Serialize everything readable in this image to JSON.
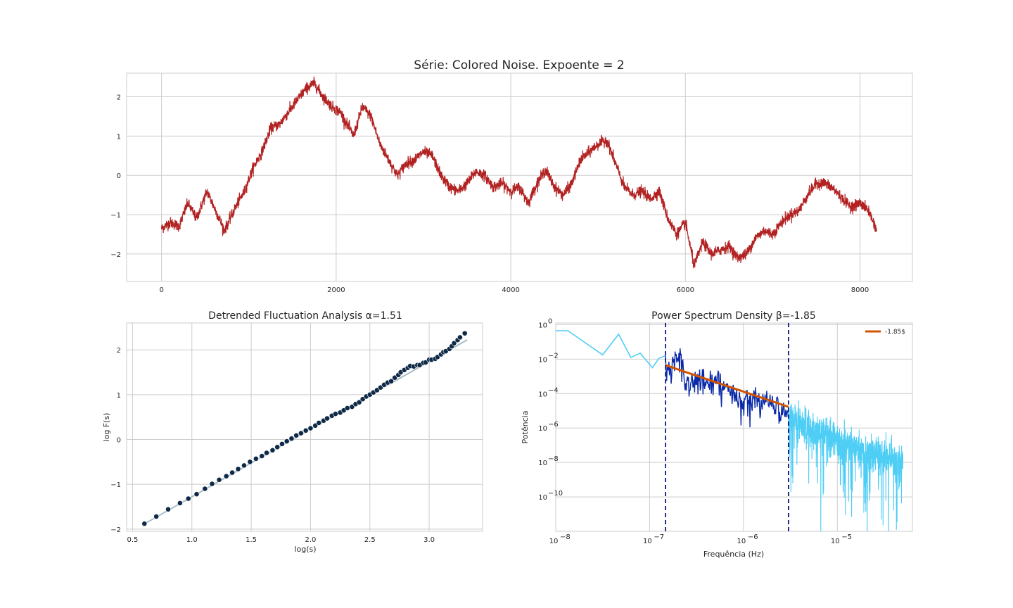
{
  "chart_data": [
    {
      "id": "series",
      "type": "line",
      "title": "Série: Colored Noise. Expoente = 2",
      "xlabel": "",
      "ylabel": "",
      "xlim": [
        -400,
        8600
      ],
      "ylim": [
        -2.7,
        2.6
      ],
      "xticks": [
        0,
        2000,
        4000,
        6000,
        8000
      ],
      "yticks": [
        -2,
        -1,
        0,
        1,
        2
      ],
      "color": "#b22222",
      "grid": true,
      "n_points": 8192,
      "anchors": [
        [
          0,
          -1.35
        ],
        [
          100,
          -1.2
        ],
        [
          200,
          -1.3
        ],
        [
          300,
          -0.7
        ],
        [
          400,
          -1.1
        ],
        [
          520,
          -0.4
        ],
        [
          620,
          -0.9
        ],
        [
          720,
          -1.4
        ],
        [
          850,
          -0.8
        ],
        [
          950,
          -0.4
        ],
        [
          1050,
          0.2
        ],
        [
          1150,
          0.6
        ],
        [
          1250,
          1.2
        ],
        [
          1350,
          1.3
        ],
        [
          1450,
          1.6
        ],
        [
          1550,
          1.9
        ],
        [
          1650,
          2.2
        ],
        [
          1750,
          2.35
        ],
        [
          1850,
          2.0
        ],
        [
          1950,
          1.75
        ],
        [
          2050,
          1.6
        ],
        [
          2200,
          1.0
        ],
        [
          2300,
          1.75
        ],
        [
          2400,
          1.5
        ],
        [
          2500,
          0.8
        ],
        [
          2600,
          0.4
        ],
        [
          2700,
          0.0
        ],
        [
          2800,
          0.3
        ],
        [
          2900,
          0.4
        ],
        [
          3000,
          0.6
        ],
        [
          3100,
          0.5
        ],
        [
          3200,
          0.0
        ],
        [
          3300,
          -0.3
        ],
        [
          3400,
          -0.4
        ],
        [
          3500,
          -0.2
        ],
        [
          3600,
          0.1
        ],
        [
          3700,
          0.0
        ],
        [
          3800,
          -0.3
        ],
        [
          3900,
          -0.2
        ],
        [
          4000,
          -0.4
        ],
        [
          4100,
          -0.3
        ],
        [
          4200,
          -0.7
        ],
        [
          4300,
          -0.2
        ],
        [
          4400,
          0.15
        ],
        [
          4500,
          -0.3
        ],
        [
          4600,
          -0.5
        ],
        [
          4700,
          -0.2
        ],
        [
          4800,
          0.4
        ],
        [
          4900,
          0.6
        ],
        [
          5000,
          0.8
        ],
        [
          5100,
          0.9
        ],
        [
          5200,
          0.3
        ],
        [
          5300,
          -0.3
        ],
        [
          5400,
          -0.5
        ],
        [
          5500,
          -0.4
        ],
        [
          5600,
          -0.6
        ],
        [
          5700,
          -0.4
        ],
        [
          5800,
          -1.1
        ],
        [
          5900,
          -1.5
        ],
        [
          6000,
          -1.2
        ],
        [
          6100,
          -2.3
        ],
        [
          6200,
          -1.7
        ],
        [
          6300,
          -2.0
        ],
        [
          6400,
          -1.9
        ],
        [
          6500,
          -1.8
        ],
        [
          6600,
          -2.1
        ],
        [
          6700,
          -2.0
        ],
        [
          6800,
          -1.6
        ],
        [
          6900,
          -1.4
        ],
        [
          7000,
          -1.5
        ],
        [
          7100,
          -1.2
        ],
        [
          7200,
          -1.0
        ],
        [
          7300,
          -0.9
        ],
        [
          7400,
          -0.5
        ],
        [
          7500,
          -0.2
        ],
        [
          7600,
          -0.2
        ],
        [
          7700,
          -0.35
        ],
        [
          7800,
          -0.6
        ],
        [
          7900,
          -0.8
        ],
        [
          8000,
          -0.7
        ],
        [
          8100,
          -0.9
        ],
        [
          8191,
          -1.4
        ]
      ]
    },
    {
      "id": "dfa",
      "type": "scatter",
      "title": "Detrended Fluctuation Analysis α=1.51",
      "xlabel": "log(s)",
      "ylabel": "log F(s)",
      "xlim": [
        0.45,
        3.45
      ],
      "ylim": [
        -2.05,
        2.6
      ],
      "xticks": [
        0.5,
        1.0,
        1.5,
        2.0,
        2.5,
        3.0
      ],
      "yticks": [
        -2,
        -1,
        0,
        1,
        2
      ],
      "grid": true,
      "point_color": "#0e2a47",
      "fit_color": "#a8bcc8",
      "fit": {
        "slope": 1.51,
        "intercept": -2.79,
        "x_range": [
          0.6,
          3.32
        ]
      },
      "x": [
        0.6,
        0.7,
        0.8,
        0.9,
        0.97,
        1.04,
        1.11,
        1.17,
        1.23,
        1.29,
        1.34,
        1.39,
        1.44,
        1.49,
        1.54,
        1.59,
        1.63,
        1.68,
        1.72,
        1.76,
        1.8,
        1.84,
        1.88,
        1.92,
        1.96,
        2.0,
        2.04,
        2.07,
        2.11,
        2.14,
        2.18,
        2.21,
        2.25,
        2.28,
        2.31,
        2.35,
        2.38,
        2.41,
        2.44,
        2.47,
        2.5,
        2.53,
        2.56,
        2.59,
        2.62,
        2.65,
        2.68,
        2.71,
        2.74,
        2.76,
        2.79,
        2.82,
        2.84,
        2.87,
        2.9,
        2.92,
        2.95,
        2.97,
        3.0,
        3.02,
        3.05,
        3.07,
        3.1,
        3.12,
        3.14,
        3.17,
        3.19,
        3.21,
        3.24,
        3.26,
        3.3
      ],
      "y": [
        -1.88,
        -1.72,
        -1.56,
        -1.42,
        -1.32,
        -1.22,
        -1.1,
        -0.99,
        -0.9,
        -0.82,
        -0.74,
        -0.66,
        -0.58,
        -0.5,
        -0.43,
        -0.37,
        -0.3,
        -0.24,
        -0.17,
        -0.1,
        -0.04,
        0.02,
        0.09,
        0.14,
        0.2,
        0.25,
        0.31,
        0.37,
        0.42,
        0.47,
        0.53,
        0.57,
        0.6,
        0.65,
        0.7,
        0.73,
        0.79,
        0.83,
        0.9,
        0.96,
        1.0,
        1.05,
        1.1,
        1.16,
        1.22,
        1.27,
        1.3,
        1.38,
        1.44,
        1.5,
        1.55,
        1.6,
        1.64,
        1.63,
        1.66,
        1.66,
        1.71,
        1.72,
        1.78,
        1.78,
        1.8,
        1.84,
        1.9,
        1.95,
        1.97,
        2.02,
        2.08,
        2.15,
        2.22,
        2.28,
        2.37
      ]
    },
    {
      "id": "psd",
      "type": "line",
      "title": "Power Spectrum Density β=-1.85",
      "xlabel": "Frequência (Hz)",
      "ylabel": "Potência",
      "xscale": "log",
      "yscale": "log",
      "xlim_log10": [
        -8,
        -4.2
      ],
      "ylim_log10": [
        -12,
        0.1
      ],
      "xticks_log10": [
        -8,
        -7,
        -6,
        -5
      ],
      "yticks_log10": [
        0,
        -2,
        -4,
        -6,
        -8,
        -10
      ],
      "grid": true,
      "colors": {
        "outside": "#4ecdf5",
        "inside": "#0a2aa8",
        "fit": "#d35400",
        "vline": "#0d1a80"
      },
      "fit_window_log10": [
        -6.83,
        -5.52
      ],
      "fit": {
        "slope": -1.85,
        "intercept_at_start": -2.35,
        "legend": "-1.85$"
      },
      "legend_position": "top-right",
      "spectrum_anchors_log10": [
        [
          -8.0,
          -0.35
        ],
        [
          -7.87,
          -0.35
        ],
        [
          -7.5,
          -1.75
        ],
        [
          -7.33,
          -0.55
        ],
        [
          -7.2,
          -1.9
        ],
        [
          -7.1,
          -1.65
        ],
        [
          -6.97,
          -2.5
        ],
        [
          -6.9,
          -1.95
        ],
        [
          -6.83,
          -1.8
        ],
        [
          -6.78,
          -2.6
        ],
        [
          -6.73,
          -1.45
        ],
        [
          -6.67,
          -1.5
        ],
        [
          -6.6,
          -3.2
        ],
        [
          -6.5,
          -2.7
        ],
        [
          -6.4,
          -3.0
        ],
        [
          -6.3,
          -2.8
        ],
        [
          -6.2,
          -3.3
        ],
        [
          -6.1,
          -3.6
        ],
        [
          -6.0,
          -4.1
        ],
        [
          -5.9,
          -3.8
        ],
        [
          -5.8,
          -4.2
        ],
        [
          -5.7,
          -4.0
        ],
        [
          -5.6,
          -4.6
        ],
        [
          -5.52,
          -4.9
        ],
        [
          -5.4,
          -5.2
        ],
        [
          -5.2,
          -5.7
        ],
        [
          -5.0,
          -6.2
        ],
        [
          -4.8,
          -6.6
        ],
        [
          -4.6,
          -7.0
        ],
        [
          -4.4,
          -7.3
        ],
        [
          -4.3,
          -7.4
        ]
      ]
    }
  ]
}
